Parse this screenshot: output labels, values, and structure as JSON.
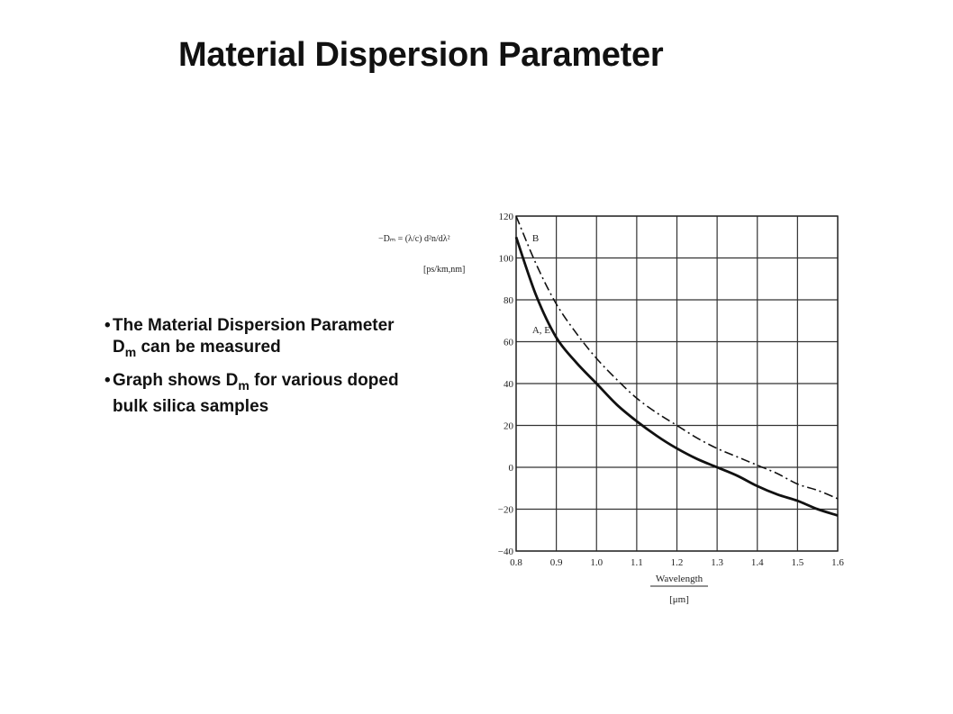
{
  "slide": {
    "title": "Material Dispersion Parameter",
    "bullets": [
      {
        "pre": "The Material Dispersion Parameter D",
        "sub": "m",
        "post": " can be measured"
      },
      {
        "pre": "Graph shows D",
        "sub": "m",
        "post": " for various doped bulk silica samples"
      }
    ]
  },
  "chart_data": {
    "type": "line",
    "ylabel_formula": "−Dₘ = (λ/c) d²n/dλ²",
    "ylabel_units": "[ps/km,nm]",
    "xlabel": "Wavelength",
    "xlabel_units": "[μm]",
    "xlim": [
      0.8,
      1.6
    ],
    "ylim": [
      -40,
      120
    ],
    "xticks": [
      0.8,
      0.9,
      1.0,
      1.1,
      1.2,
      1.3,
      1.4,
      1.5,
      1.6
    ],
    "yticks": [
      -40,
      -20,
      0,
      20,
      40,
      60,
      80,
      100,
      120
    ],
    "xtick_labels": [
      "0.8",
      "0.9",
      "1.0",
      "1.1",
      "1.2",
      "1.3",
      "1.4",
      "1.5",
      "1.6"
    ],
    "ytick_labels": [
      "−40",
      "−20",
      "0",
      "20",
      "40",
      "60",
      "80",
      "100",
      "120"
    ],
    "grid": true,
    "series": [
      {
        "name": "A, E",
        "style": "solid",
        "color": "#111111",
        "x": [
          0.8,
          0.85,
          0.9,
          0.95,
          1.0,
          1.05,
          1.1,
          1.15,
          1.2,
          1.25,
          1.3,
          1.35,
          1.4,
          1.45,
          1.5,
          1.55,
          1.6
        ],
        "y": [
          110,
          82,
          62,
          50,
          40,
          30,
          22,
          15,
          9,
          4,
          0,
          -4,
          -9,
          -13,
          -16,
          -20,
          -23
        ]
      },
      {
        "name": "B",
        "style": "dash-dot",
        "color": "#111111",
        "x": [
          0.8,
          0.85,
          0.9,
          0.95,
          1.0,
          1.05,
          1.1,
          1.15,
          1.2,
          1.25,
          1.3,
          1.35,
          1.4,
          1.45,
          1.5,
          1.55,
          1.6
        ],
        "y": [
          120,
          97,
          78,
          64,
          52,
          42,
          33,
          26,
          20,
          14,
          9,
          5,
          1,
          -3,
          -8,
          -11,
          -15
        ]
      }
    ],
    "annotations": [
      {
        "text": "B",
        "x": 0.84,
        "y": 108
      },
      {
        "text": "A, E",
        "x": 0.84,
        "y": 64
      }
    ]
  }
}
